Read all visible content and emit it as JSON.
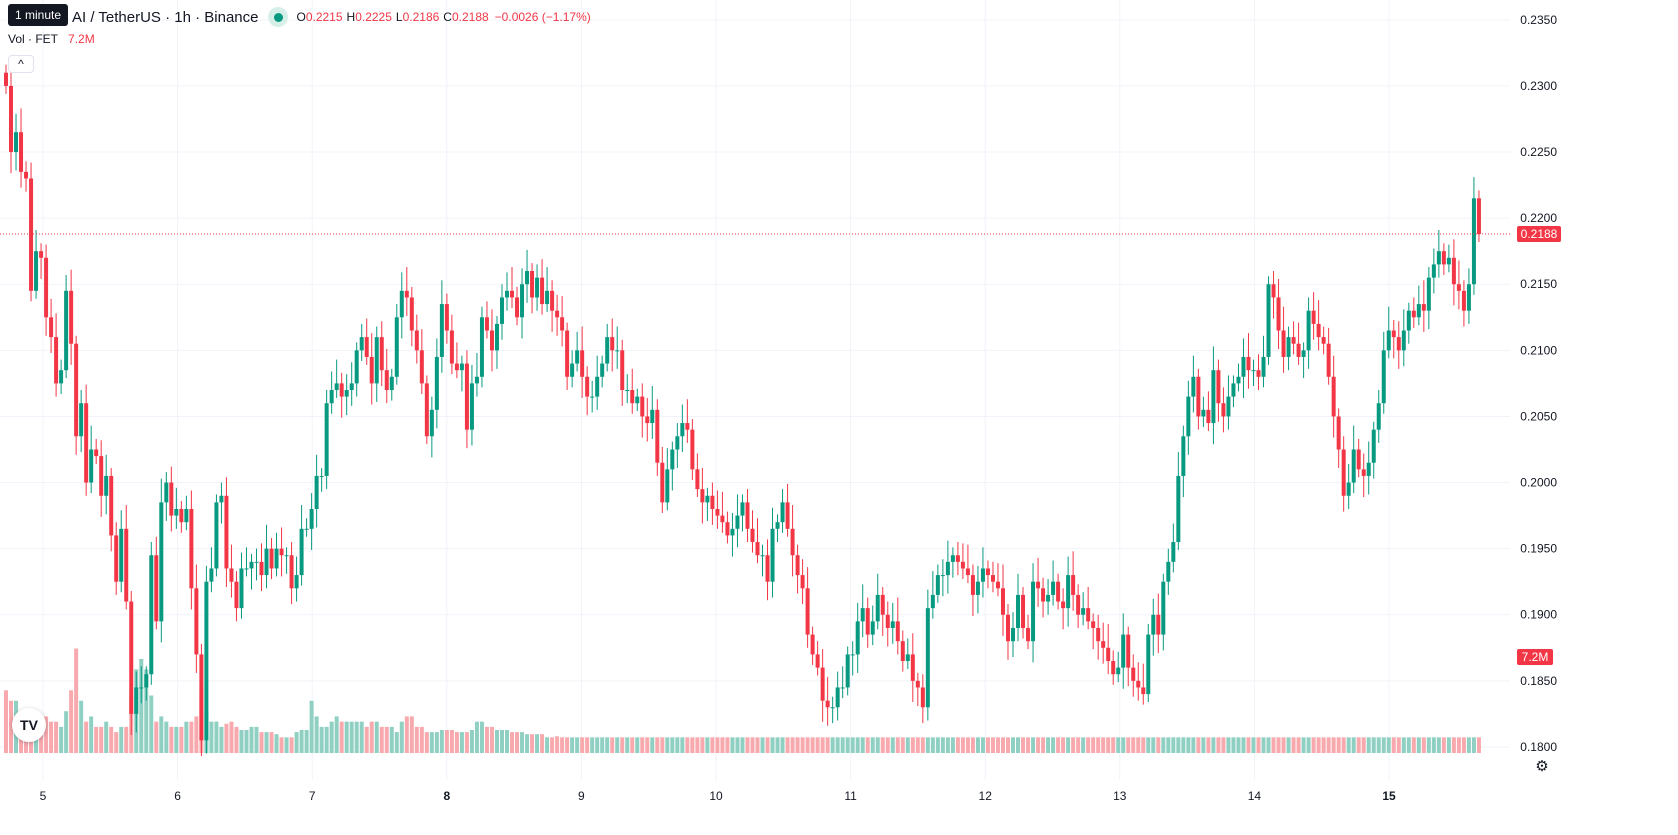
{
  "header": {
    "tooltip": "1 minute",
    "title": "AI / TetherUS · 1h · Binance",
    "o_label": "O",
    "o_value": "0.2215",
    "h_label": "H",
    "h_value": "0.2225",
    "l_label": "L",
    "l_value": "0.2186",
    "c_label": "C",
    "c_value": "0.2188",
    "change": "−0.0026 (−1.17%)"
  },
  "volume_legend": {
    "label": "Vol · FET",
    "value": "7.2M"
  },
  "controls": {
    "collapse_icon": "chevron-up-icon",
    "settings_icon": "gear-icon",
    "logo": "tradingview-logo"
  },
  "colors": {
    "up": "#089981",
    "down": "#f23645",
    "up_vol": "#8fd0c3",
    "down_vol": "#f7a9ae",
    "grid": "#f0f3fa"
  },
  "chart_data": {
    "type": "candlestick",
    "interval": "1h",
    "x_ticks": [
      "5",
      "6",
      "7",
      "8",
      "9",
      "10",
      "11",
      "12",
      "13",
      "14",
      "15"
    ],
    "y_ticks": [
      "0.2350",
      "0.2300",
      "0.2250",
      "0.2200",
      "0.2150",
      "0.2100",
      "0.2050",
      "0.2000",
      "0.1950",
      "0.1900",
      "0.1850",
      "0.1800"
    ],
    "ylim": [
      0.1775,
      0.2365
    ],
    "last_price": "0.2188",
    "last_volume": "7.2M",
    "grid": true,
    "closes": [
      0.23,
      0.225,
      0.2265,
      0.2235,
      0.223,
      0.2145,
      0.2175,
      0.217,
      0.2125,
      0.211,
      0.2075,
      0.2085,
      0.2145,
      0.2105,
      0.2035,
      0.206,
      0.2,
      0.2025,
      0.202,
      0.199,
      0.2005,
      0.196,
      0.1925,
      0.1965,
      0.191,
      0.1825,
      0.1845,
      0.1845,
      0.1855,
      0.1945,
      0.1895,
      0.1985,
      0.2,
      0.1975,
      0.198,
      0.197,
      0.198,
      0.192,
      0.187,
      0.1805,
      0.1925,
      0.1935,
      0.1985,
      0.199,
      0.1935,
      0.1925,
      0.1905,
      0.1935,
      0.1935,
      0.194,
      0.194,
      0.193,
      0.195,
      0.1935,
      0.195,
      0.1945,
      0.1945,
      0.192,
      0.193,
      0.1965,
      0.1965,
      0.198,
      0.2005,
      0.2005,
      0.206,
      0.207,
      0.2075,
      0.2065,
      0.207,
      0.2075,
      0.21,
      0.211,
      0.2095,
      0.2075,
      0.211,
      0.2085,
      0.207,
      0.208,
      0.2125,
      0.2145,
      0.214,
      0.2115,
      0.21,
      0.2075,
      0.2035,
      0.2055,
      0.2095,
      0.2135,
      0.2115,
      0.209,
      0.2085,
      0.209,
      0.204,
      0.2075,
      0.208,
      0.2125,
      0.2115,
      0.21,
      0.212,
      0.214,
      0.2145,
      0.214,
      0.2125,
      0.215,
      0.216,
      0.214,
      0.2155,
      0.2135,
      0.2145,
      0.213,
      0.2125,
      0.2115,
      0.208,
      0.209,
      0.21,
      0.208,
      0.2065,
      0.2065,
      0.208,
      0.209,
      0.211,
      0.21,
      0.21,
      0.207,
      0.207,
      0.206,
      0.2065,
      0.205,
      0.2045,
      0.2055,
      0.2015,
      0.1985,
      0.201,
      0.2025,
      0.2035,
      0.2045,
      0.204,
      0.201,
      0.1995,
      0.1985,
      0.199,
      0.198,
      0.1975,
      0.197,
      0.196,
      0.1965,
      0.1975,
      0.1985,
      0.1965,
      0.1955,
      0.1945,
      0.1945,
      0.1925,
      0.1965,
      0.197,
      0.1985,
      0.1965,
      0.1945,
      0.193,
      0.192,
      0.1885,
      0.187,
      0.186,
      0.1835,
      0.183,
      0.183,
      0.1845,
      0.1845,
      0.187,
      0.187,
      0.1895,
      0.1905,
      0.1885,
      0.1895,
      0.1915,
      0.19,
      0.189,
      0.1895,
      0.188,
      0.1865,
      0.187,
      0.185,
      0.1845,
      0.183,
      0.1905,
      0.1915,
      0.193,
      0.193,
      0.194,
      0.1945,
      0.194,
      0.1935,
      0.193,
      0.1915,
      0.1925,
      0.1935,
      0.193,
      0.1925,
      0.192,
      0.19,
      0.188,
      0.189,
      0.1915,
      0.189,
      0.188,
      0.1925,
      0.192,
      0.191,
      0.1915,
      0.1925,
      0.191,
      0.1905,
      0.193,
      0.1915,
      0.19,
      0.1905,
      0.1895,
      0.189,
      0.188,
      0.1875,
      0.1865,
      0.1855,
      0.186,
      0.1885,
      0.186,
      0.185,
      0.1845,
      0.184,
      0.1885,
      0.19,
      0.1885,
      0.1925,
      0.194,
      0.1955,
      0.2005,
      0.2035,
      0.2065,
      0.208,
      0.205,
      0.2055,
      0.2045,
      0.2085,
      0.206,
      0.205,
      0.2065,
      0.2075,
      0.208,
      0.2095,
      0.2085,
      0.2085,
      0.208,
      0.2095,
      0.215,
      0.214,
      0.2115,
      0.2095,
      0.211,
      0.2105,
      0.2095,
      0.21,
      0.213,
      0.212,
      0.211,
      0.2105,
      0.208,
      0.205,
      0.2025,
      0.199,
      0.2,
      0.2025,
      0.201,
      0.2005,
      0.2015,
      0.204,
      0.206,
      0.21,
      0.2115,
      0.211,
      0.21,
      0.2115,
      0.213,
      0.2125,
      0.2135,
      0.213,
      0.2155,
      0.2165,
      0.2175,
      0.2165,
      0.217,
      0.215,
      0.2145,
      0.213,
      0.215,
      0.2215,
      0.2188
    ],
    "volumes": [
      0.6,
      0.5,
      0.5,
      0.4,
      0.35,
      0.3,
      0.4,
      0.3,
      0.35,
      0.3,
      0.3,
      0.25,
      0.4,
      0.6,
      1.0,
      0.5,
      0.3,
      0.35,
      0.25,
      0.25,
      0.3,
      0.25,
      0.2,
      0.25,
      0.25,
      0.55,
      0.8,
      0.9,
      0.8,
      0.55,
      0.3,
      0.35,
      0.3,
      0.25,
      0.25,
      0.25,
      0.3,
      0.3,
      0.35,
      0.6,
      0.4,
      0.3,
      0.3,
      0.25,
      0.28,
      0.3,
      0.25,
      0.22,
      0.22,
      0.25,
      0.25,
      0.2,
      0.2,
      0.2,
      0.18,
      0.15,
      0.15,
      0.15,
      0.2,
      0.22,
      0.22,
      0.5,
      0.35,
      0.25,
      0.25,
      0.3,
      0.35,
      0.3,
      0.3,
      0.3,
      0.3,
      0.3,
      0.25,
      0.3,
      0.3,
      0.25,
      0.25,
      0.25,
      0.2,
      0.3,
      0.35,
      0.35,
      0.25,
      0.25,
      0.2,
      0.2,
      0.2,
      0.22,
      0.22,
      0.22,
      0.2,
      0.2,
      0.2,
      0.22,
      0.3,
      0.3,
      0.25,
      0.25,
      0.22,
      0.22,
      0.22,
      0.2,
      0.2,
      0.2,
      0.18,
      0.18,
      0.18,
      0.18,
      0.15,
      0.15,
      0.16,
      0.15,
      0.15,
      0.15,
      0.15,
      0.15,
      0.15,
      0.15,
      0.15,
      0.15,
      0.15,
      0.15,
      0.15,
      0.15,
      0.15,
      0.15,
      0.15,
      0.15,
      0.15,
      0.15,
      0.15,
      0.15,
      0.15,
      0.15,
      0.15,
      0.15,
      0.15,
      0.15,
      0.15,
      0.15,
      0.15,
      0.15,
      0.15,
      0.15,
      0.15,
      0.15,
      0.15,
      0.15,
      0.15,
      0.15,
      0.15,
      0.15,
      0.15,
      0.15,
      0.15,
      0.15,
      0.15,
      0.15,
      0.15,
      0.15,
      0.15,
      0.15,
      0.15,
      0.15,
      0.15,
      0.15,
      0.15,
      0.15,
      0.15,
      0.15,
      0.15,
      0.15,
      0.15,
      0.15,
      0.15,
      0.15,
      0.15,
      0.15,
      0.15,
      0.15,
      0.15,
      0.15,
      0.15,
      0.15,
      0.15,
      0.15,
      0.15,
      0.15,
      0.15,
      0.15,
      0.15,
      0.15,
      0.15,
      0.15,
      0.15,
      0.15,
      0.15,
      0.15,
      0.15,
      0.15,
      0.15,
      0.15,
      0.15,
      0.15,
      0.15,
      0.15,
      0.15,
      0.15,
      0.15,
      0.15,
      0.15,
      0.15,
      0.15,
      0.15,
      0.15,
      0.15,
      0.15,
      0.15,
      0.15,
      0.15,
      0.15,
      0.15,
      0.15,
      0.15,
      0.15,
      0.15,
      0.15,
      0.15,
      0.15,
      0.15,
      0.15,
      0.15,
      0.15,
      0.15,
      0.15,
      0.15,
      0.15,
      0.15,
      0.15,
      0.15,
      0.15,
      0.15,
      0.15,
      0.15,
      0.15,
      0.15,
      0.15,
      0.15,
      0.15,
      0.15,
      0.15,
      0.15,
      0.15,
      0.15,
      0.15,
      0.15,
      0.15,
      0.15,
      0.15,
      0.15,
      0.15,
      0.15,
      0.15,
      0.15,
      0.15,
      0.15,
      0.15,
      0.15,
      0.15,
      0.15,
      0.15,
      0.15,
      0.15,
      0.15,
      0.15,
      0.15,
      0.15,
      0.15,
      0.15,
      0.15,
      0.15,
      0.15,
      0.15,
      0.15,
      0.15,
      0.15,
      0.15,
      0.15,
      0.15,
      0.15
    ]
  }
}
